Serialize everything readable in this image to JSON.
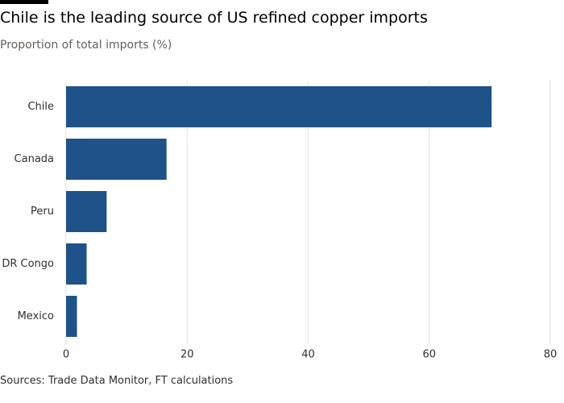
{
  "header": {
    "title": "Chile is the leading source of US refined copper imports",
    "subtitle": "Proportion of total imports (%)"
  },
  "footer": {
    "source": "Sources: Trade Data Monitor, FT calculations"
  },
  "colors": {
    "bar": "#1f5289",
    "grid": "#e6e2df",
    "text": "#33302e"
  },
  "chart_data": {
    "type": "bar",
    "orientation": "horizontal",
    "categories": [
      "Chile",
      "Canada",
      "Peru",
      "DR Congo",
      "Mexico"
    ],
    "values": [
      70.3,
      16.6,
      6.7,
      3.4,
      1.8
    ],
    "title": "Chile is the leading source of US refined copper imports",
    "subtitle": "Proportion of total imports (%)",
    "xlabel": "",
    "ylabel": "",
    "xlim": [
      0,
      80
    ],
    "xticks": [
      0,
      20,
      40,
      60,
      80
    ],
    "grid": true,
    "legend": "none"
  }
}
